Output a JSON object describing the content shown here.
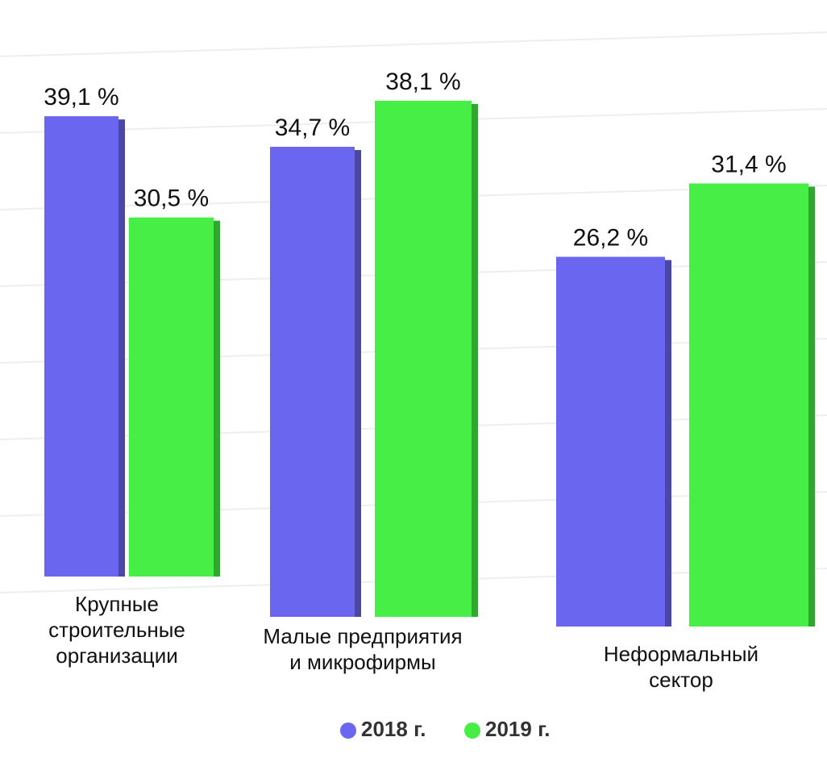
{
  "chart_data": {
    "type": "bar",
    "categories": [
      "Крупные строительные организации",
      "Малые предприятия и микрофирмы",
      "Неформальный сектор"
    ],
    "series": [
      {
        "name": "2018 г.",
        "color": "#6a66f0",
        "values": [
          39.1,
          34.7,
          26.2
        ],
        "value_labels": [
          "39,1 %",
          "34,7 %",
          "26,2 %"
        ]
      },
      {
        "name": "2019 г.",
        "color": "#46ee46",
        "values": [
          30.5,
          38.1,
          31.4
        ],
        "value_labels": [
          "30,5 %",
          "38,1 %",
          "31,4 %"
        ]
      }
    ],
    "legend": "bottom"
  }
}
